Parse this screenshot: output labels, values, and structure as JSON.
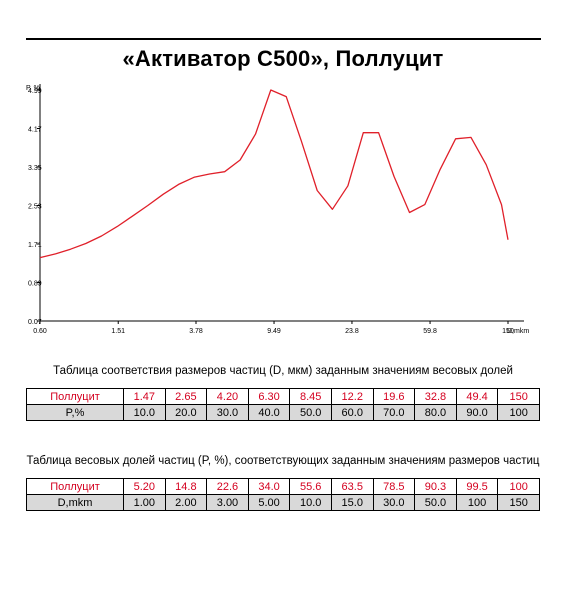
{
  "title": "«Активатор C500», Поллуцит",
  "chart_data": {
    "type": "line",
    "ylabel": "P, %",
    "xlabel": "D,mkm",
    "y_ticks": [
      "4.99",
      "4.17",
      "3.35",
      "2.53",
      "1.71",
      "0.89",
      "0.07"
    ],
    "ylim": [
      0.07,
      4.99
    ],
    "x_ticks": [
      "0.60",
      "1.51",
      "3.78",
      "9.49",
      "23.8",
      "59.8",
      "150"
    ],
    "series": [
      {
        "color": "#e0202a",
        "x": [
          0.6,
          0.72,
          0.86,
          1.03,
          1.24,
          1.49,
          1.78,
          2.14,
          2.57,
          3.08,
          3.69,
          4.43,
          5.3,
          6.36,
          7.63,
          9.14,
          10.96,
          13.1,
          15.8,
          18.9,
          22.7,
          27.2,
          32.6,
          39.1,
          46.9,
          56.2,
          67.4,
          80.8,
          96.9,
          116,
          139,
          150
        ],
        "y": [
          1.42,
          1.5,
          1.6,
          1.72,
          1.88,
          2.08,
          2.3,
          2.53,
          2.77,
          2.98,
          3.13,
          3.2,
          3.25,
          3.5,
          4.05,
          4.99,
          4.85,
          3.9,
          2.85,
          2.45,
          2.95,
          4.08,
          4.08,
          3.15,
          2.38,
          2.55,
          3.3,
          3.95,
          3.98,
          3.4,
          2.55,
          1.8
        ]
      }
    ]
  },
  "table1": {
    "caption": "Таблица соответствия размеров частиц (D, мкм) заданным значениям весовых долей",
    "row1_label": "Поллуцит",
    "row1": [
      "1.47",
      "2.65",
      "4.20",
      "6.30",
      "8.45",
      "12.2",
      "19.6",
      "32.8",
      "49.4",
      "150"
    ],
    "row2_label": "P,%",
    "row2": [
      "10.0",
      "20.0",
      "30.0",
      "40.0",
      "50.0",
      "60.0",
      "70.0",
      "80.0",
      "90.0",
      "100"
    ]
  },
  "table2": {
    "caption": "Таблица весовых долей частиц (P, %), соответствующих заданным значениям размеров частиц",
    "row1_label": "Поллуцит",
    "row1": [
      "5.20",
      "14.8",
      "22.6",
      "34.0",
      "55.6",
      "63.5",
      "78.5",
      "90.3",
      "99.5",
      "100"
    ],
    "row2_label": "D,mkm",
    "row2": [
      "1.00",
      "2.00",
      "3.00",
      "5.00",
      "10.0",
      "15.0",
      "30.0",
      "50.0",
      "100",
      "150"
    ]
  }
}
